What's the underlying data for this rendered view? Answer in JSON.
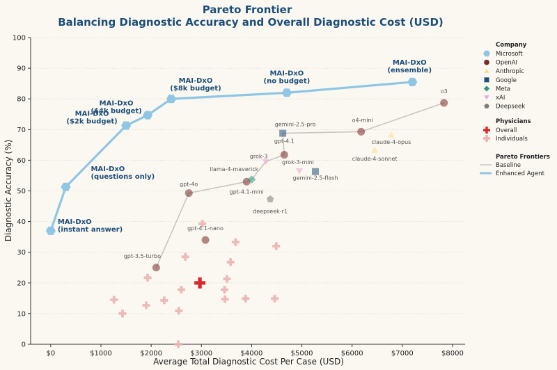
{
  "chart_data": {
    "type": "scatter",
    "title": "Pareto Frontier",
    "subtitle": "Balancing Diagnostic Accuracy and Overall Diagnostic Cost (USD)",
    "xlabel": "Average Total Diagnostic Cost Per Case (USD)",
    "ylabel": "Diagnostic Accuracy (%)",
    "xlim": [
      -400,
      8250
    ],
    "ylim": [
      0,
      100
    ],
    "x_ticks": [
      {
        "value": 0,
        "label": "$0"
      },
      {
        "value": 1000,
        "label": "$1000"
      },
      {
        "value": 2000,
        "label": "$2000"
      },
      {
        "value": 3000,
        "label": "$3000"
      },
      {
        "value": 4000,
        "label": "$4000"
      },
      {
        "value": 5000,
        "label": "$5000"
      },
      {
        "value": 6000,
        "label": "$6000"
      },
      {
        "value": 7000,
        "label": "$7000"
      },
      {
        "value": 8000,
        "label": "$8000"
      }
    ],
    "y_ticks": [
      0,
      10,
      20,
      30,
      40,
      50,
      60,
      70,
      80,
      90,
      100
    ],
    "grid": "horizontal dotted",
    "legend_position": "right",
    "colors": {
      "microsoft": "#8ec6e4",
      "openai": "#7a2a2a",
      "anthropic": "#f2e08a",
      "google": "#1f4e79",
      "meta": "#2e9a7a",
      "xai": "#e7a6d4",
      "deepseek": "#7a7a7a",
      "physician": "#d6282e",
      "physician_individual": "#eab3b3",
      "baseline": "#c9c5c0",
      "enhanced": "#8ec6e4",
      "title": "#1d4e7a"
    },
    "enhanced_agent": [
      {
        "x": 0,
        "y": 37,
        "label": "MAI-DxO\n(instant answer)"
      },
      {
        "x": 300,
        "y": 51.3,
        "label": "MAI-DxO\n(questions only)"
      },
      {
        "x": 1500,
        "y": 71.3,
        "label": "MAI-DxO\n($2k budget)"
      },
      {
        "x": 1930,
        "y": 74.7,
        "label": "MAI-DxO\n($4k budget)"
      },
      {
        "x": 2400,
        "y": 80,
        "label": "MAI-DxO\n($8k budget)"
      },
      {
        "x": 4700,
        "y": 82,
        "label": "MAI-DxO\n(no budget)"
      },
      {
        "x": 7200,
        "y": 85.5,
        "label": "MAI-DxO\n(ensemble)"
      }
    ],
    "baseline_models": [
      {
        "name": "gpt-3.5-turbo",
        "company": "OpenAI",
        "x": 2100,
        "y": 25
      },
      {
        "name": "gpt-4.1-nano",
        "company": "OpenAI",
        "x": 3080,
        "y": 34
      },
      {
        "name": "gpt-4o",
        "company": "OpenAI",
        "x": 2750,
        "y": 49.3
      },
      {
        "name": "gpt-4.1-mini",
        "company": "OpenAI",
        "x": 3900,
        "y": 53
      },
      {
        "name": "llama-4-maverick",
        "company": "Meta",
        "x": 4000,
        "y": 53.7
      },
      {
        "name": "grok-3",
        "company": "xAI",
        "x": 4280,
        "y": 59.5
      },
      {
        "name": "grok-3-mini",
        "company": "xAI",
        "x": 4950,
        "y": 56.5
      },
      {
        "name": "gpt-4.1",
        "company": "OpenAI",
        "x": 4650,
        "y": 61.8
      },
      {
        "name": "deepseek-r1",
        "company": "Deepseek",
        "x": 4370,
        "y": 47.3
      },
      {
        "name": "gemini-2.5-flash",
        "company": "Google",
        "x": 5270,
        "y": 56.3
      },
      {
        "name": "gemini-2.5-pro",
        "company": "Google",
        "x": 4620,
        "y": 68.8
      },
      {
        "name": "o4-mini",
        "company": "OpenAI",
        "x": 6180,
        "y": 69.3
      },
      {
        "name": "claude-4-sonnet",
        "company": "Anthropic",
        "x": 6450,
        "y": 63.3
      },
      {
        "name": "claude-4-opus",
        "company": "Anthropic",
        "x": 6780,
        "y": 68.3
      },
      {
        "name": "o3",
        "company": "OpenAI",
        "x": 7830,
        "y": 78.7
      }
    ],
    "baseline_frontier": [
      "gpt-3.5-turbo",
      "gpt-4o",
      "gpt-4.1-mini",
      "llama-4-maverick",
      "grok-3",
      "gpt-4.1",
      "gemini-2.5-pro",
      "o4-mini",
      "o3"
    ],
    "physician_overall": {
      "x": 2970,
      "y": 20
    },
    "physician_individuals": [
      {
        "x": 1260,
        "y": 14.5
      },
      {
        "x": 1430,
        "y": 10
      },
      {
        "x": 1900,
        "y": 12.7
      },
      {
        "x": 1930,
        "y": 21.7
      },
      {
        "x": 2260,
        "y": 14.3
      },
      {
        "x": 2550,
        "y": 10.9
      },
      {
        "x": 2600,
        "y": 17.8
      },
      {
        "x": 2680,
        "y": 28.5
      },
      {
        "x": 3020,
        "y": 39.3
      },
      {
        "x": 3460,
        "y": 17.8
      },
      {
        "x": 3470,
        "y": 14.7
      },
      {
        "x": 3510,
        "y": 21.3
      },
      {
        "x": 3580,
        "y": 26.8
      },
      {
        "x": 3680,
        "y": 33.3
      },
      {
        "x": 3880,
        "y": 14.9
      },
      {
        "x": 4460,
        "y": 14.9
      },
      {
        "x": 4490,
        "y": 32
      },
      {
        "x": 2540,
        "y": 0
      }
    ],
    "legend": {
      "company_title": "Company",
      "companies": [
        "Microsoft",
        "OpenAI",
        "Anthropic",
        "Google",
        "Meta",
        "xAI",
        "Deepseek"
      ],
      "physicians_title": "Physicians",
      "physicians": [
        "Overall",
        "Individuals"
      ],
      "frontiers_title": "Pareto Frontiers",
      "frontiers": [
        "Baseline",
        "Enhanced Agent"
      ]
    }
  }
}
